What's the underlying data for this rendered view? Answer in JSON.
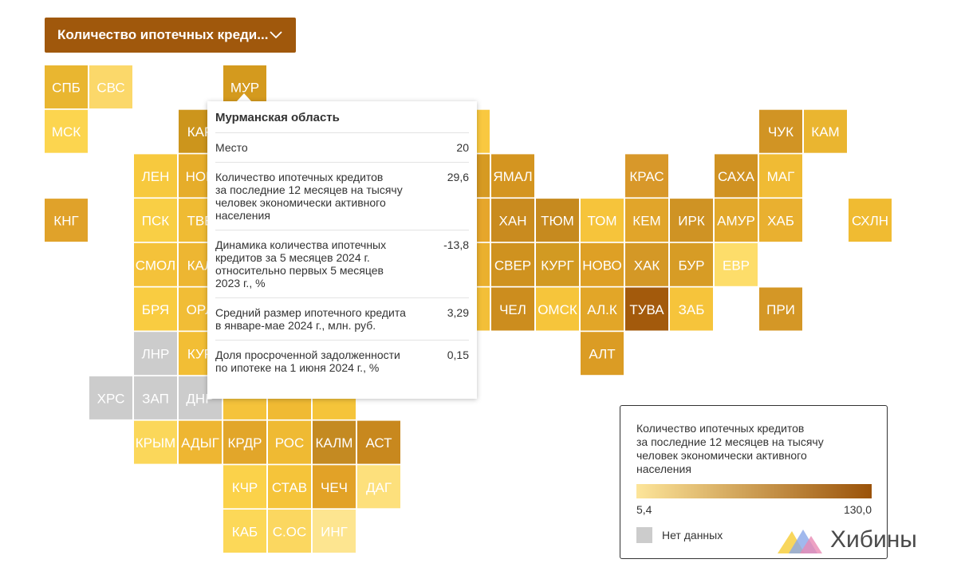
{
  "dropdown": {
    "label": "Количество ипотечных креди..."
  },
  "tiles": [
    {
      "label": "СПБ",
      "color": "#e9b630"
    },
    {
      "label": "СВС",
      "color": "#fbd86a"
    },
    {
      "label": "МУР",
      "color": "#d49a1e"
    },
    {
      "label": "МСК",
      "color": "#fcd54f"
    },
    {
      "label": "КАР",
      "color": "#cc951c"
    },
    {
      "label": "ЛЕН",
      "color": "#f7c93e"
    },
    {
      "label": "НОВ",
      "color": "#e6ad2a"
    },
    {
      "label": "КНГ",
      "color": "#e0a22a"
    },
    {
      "label": "ПСК",
      "color": "#f9cf45"
    },
    {
      "label": "ТВЕ",
      "color": "#efbb33"
    },
    {
      "label": "СМОЛ",
      "color": "#f4c23a"
    },
    {
      "label": "КАЛ",
      "color": "#edb632"
    },
    {
      "label": "БРЯ",
      "color": "#f9cc41"
    },
    {
      "label": "ОРЛ",
      "color": "#f1bd36"
    },
    {
      "label": "ЛНР",
      "color": "#cccccc"
    },
    {
      "label": "КУР",
      "color": "#f2be35"
    },
    {
      "label": "ХРС",
      "color": "#cccccc"
    },
    {
      "label": "ЗАП",
      "color": "#cccccc"
    },
    {
      "label": "ДНР",
      "color": "#cccccc"
    },
    {
      "label": "КРЫМ",
      "color": "#fbd75a"
    },
    {
      "label": "АДЫГ",
      "color": "#eeb632"
    },
    {
      "label": "КРДР",
      "color": "#e2a62a"
    },
    {
      "label": "РОС",
      "color": "#efba33"
    },
    {
      "label": "КАЛМ",
      "color": "#c48a22"
    },
    {
      "label": "АСТ",
      "color": "#c8881e"
    },
    {
      "label": "КЧР",
      "color": "#fbd24a"
    },
    {
      "label": "СТАВ",
      "color": "#f5c43a"
    },
    {
      "label": "ЧЕЧ",
      "color": "#e2a227"
    },
    {
      "label": "ДАГ",
      "color": "#fde07c"
    },
    {
      "label": "КАБ",
      "color": "#fcd858"
    },
    {
      "label": "С.ОС",
      "color": "#fbd760"
    },
    {
      "label": "ИНГ",
      "color": "#fde590"
    },
    {
      "label": "ЯМАЛ",
      "color": "#d49520"
    },
    {
      "label": "ХАН",
      "color": "#c98b1f"
    },
    {
      "label": "СВЕР",
      "color": "#cf921f"
    },
    {
      "label": "ЧЕЛ",
      "color": "#cc8d1e"
    },
    {
      "label": "ТЮМ",
      "color": "#c68a1f"
    },
    {
      "label": "КУРГ",
      "color": "#d29a22"
    },
    {
      "label": "ОМСК",
      "color": "#f6c53b"
    },
    {
      "label": "ТОМ",
      "color": "#f6c43b"
    },
    {
      "label": "НОВО",
      "color": "#dea025"
    },
    {
      "label": "АЛ.К",
      "color": "#e2a628"
    },
    {
      "label": "АЛТ",
      "color": "#db9c24"
    },
    {
      "label": "КРАС",
      "color": "#d8982a"
    },
    {
      "label": "КЕМ",
      "color": "#e1a52a"
    },
    {
      "label": "ХАК",
      "color": "#d49826"
    },
    {
      "label": "ТУВА",
      "color": "#a35a0c"
    },
    {
      "label": "ИРК",
      "color": "#cf9324"
    },
    {
      "label": "БУР",
      "color": "#d79c25"
    },
    {
      "label": "ЗАБ",
      "color": "#f6c43b"
    },
    {
      "label": "САХА",
      "color": "#d09222"
    },
    {
      "label": "АМУР",
      "color": "#e2a82b"
    },
    {
      "label": "ЕВР",
      "color": "#fddd6a"
    },
    {
      "label": "ЧУК",
      "color": "#d19424"
    },
    {
      "label": "МАГ",
      "color": "#f0bb34"
    },
    {
      "label": "ХАБ",
      "color": "#e9b030"
    },
    {
      "label": "ПРИ",
      "color": "#d49726"
    },
    {
      "label": "КАМ",
      "color": "#eab530"
    },
    {
      "label": "СХЛН",
      "color": "#f0bb32"
    },
    {
      "label": null,
      "color": "#f9c840"
    },
    {
      "label": null,
      "color": "#d69a22"
    },
    {
      "label": null,
      "color": "#e6a62b"
    },
    {
      "label": null,
      "color": "#eab02e"
    },
    {
      "label": null,
      "color": "#f3bf38"
    },
    {
      "label": null,
      "color": "#f5c33b"
    },
    {
      "label": null,
      "color": "#f0ba33"
    },
    {
      "label": null,
      "color": "#f5c43a"
    }
  ],
  "tooltip": {
    "title": "Мурманская область",
    "rows": [
      {
        "label": "Место",
        "value": "20"
      },
      {
        "label": "Количество ипотечных кредитов\nза последние 12 месяцев на тысячу\nчеловек экономически активного\nнаселения",
        "value": "29,6"
      },
      {
        "label": "Динамика количества ипотечных\nкредитов за 5 месяцев 2024 г.\nотносительно первых 5 месяцев\n2023 г., %",
        "value": "-13,8"
      },
      {
        "label": "Средний размер ипотечного кредита\nв январе-мае 2024 г., млн. руб.",
        "value": "3,29"
      },
      {
        "label": "Доля просроченной задолженности\nпо ипотеке на 1 июня 2024 г., %",
        "value": "0,15"
      }
    ]
  },
  "legend": {
    "title": "Количество ипотечных кредитов\nза последние 12 месяцев на тысячу\nчеловек экономически активного\nнаселения",
    "min_label": "5,4",
    "max_label": "130,0",
    "gradient": [
      "#fde59a",
      "#9a5209"
    ],
    "no_data_label": "Нет данных",
    "no_data_color": "#cccccc"
  },
  "logo": {
    "text": "Хибины"
  }
}
